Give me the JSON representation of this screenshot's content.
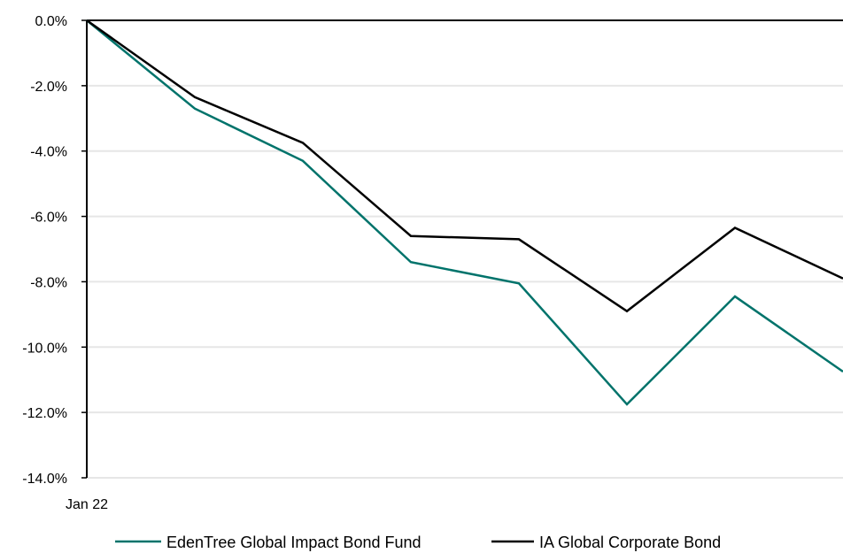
{
  "chart_data": {
    "type": "line",
    "title": "",
    "xlabel": "",
    "ylabel": "",
    "ylim": [
      -14,
      0
    ],
    "y_tick_values": [
      0,
      -2,
      -4,
      -6,
      -8,
      -10,
      -12,
      -14
    ],
    "y_tick_labels": [
      "0.0%",
      "-2.0%",
      "-4.0%",
      "-6.0%",
      "-8.0%",
      "-10.0%",
      "-12.0%",
      "-14.0%"
    ],
    "x_tick_labels": [
      "Jan 22"
    ],
    "grid": true,
    "legend_position": "bottom",
    "series": [
      {
        "name": "EdenTree Global Impact Bond Fund",
        "color": "#00736b",
        "values": [
          0.0,
          -2.7,
          -4.3,
          -7.4,
          -8.05,
          -11.75,
          -8.45,
          -10.75
        ]
      },
      {
        "name": "IA Global Corporate Bond",
        "color": "#000000",
        "values": [
          0.0,
          -2.35,
          -3.75,
          -6.6,
          -6.7,
          -8.9,
          -6.35,
          -7.9
        ]
      }
    ]
  }
}
